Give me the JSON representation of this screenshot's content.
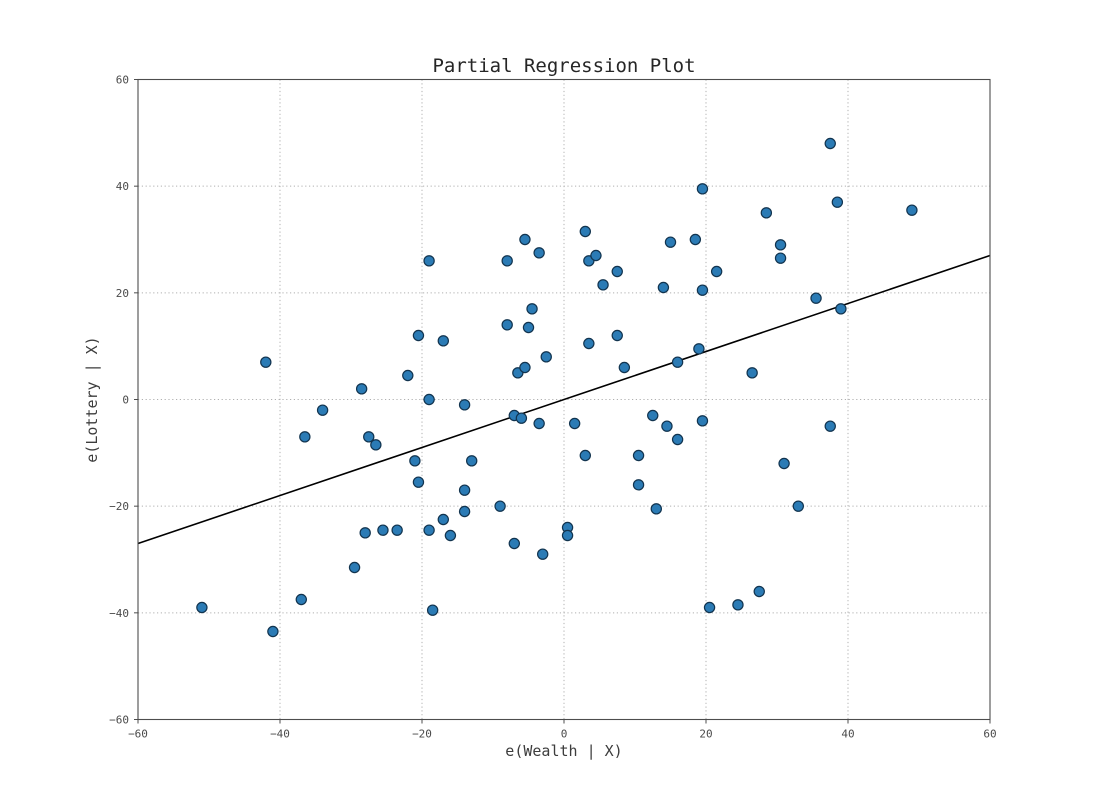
{
  "title": "Partial Regression Plot",
  "chart_data": {
    "type": "scatter",
    "title": "Partial Regression Plot",
    "xlabel": "e(Wealth | X)",
    "ylabel": "e(Lottery | X)",
    "xlim": [
      -60,
      60
    ],
    "ylim": [
      -60,
      60
    ],
    "xticks": [
      -60,
      -40,
      -20,
      0,
      20,
      40,
      60
    ],
    "yticks": [
      -60,
      -40,
      -20,
      0,
      20,
      40,
      60
    ],
    "grid": "dotted",
    "legend": "none",
    "marker_fill": "#2b7bb5",
    "marker_edge": "#12344f",
    "regression_line": {
      "x": [
        -60,
        60
      ],
      "y": [
        -27,
        27
      ],
      "color": "#000000"
    },
    "points": [
      [
        -51,
        -39
      ],
      [
        -42,
        7
      ],
      [
        -41,
        -43.5
      ],
      [
        -37,
        -37.5
      ],
      [
        -36.5,
        -7
      ],
      [
        -34,
        -2
      ],
      [
        -29.5,
        -31.5
      ],
      [
        -28.5,
        2
      ],
      [
        -28,
        -25
      ],
      [
        -27.5,
        -7
      ],
      [
        -26.5,
        -8.5
      ],
      [
        -25.5,
        -24.5
      ],
      [
        -23.5,
        -24.5
      ],
      [
        -22,
        4.5
      ],
      [
        -21,
        -11.5
      ],
      [
        -20.5,
        12
      ],
      [
        -20.5,
        -15.5
      ],
      [
        -19,
        26
      ],
      [
        -19,
        0
      ],
      [
        -19,
        -24.5
      ],
      [
        -18.5,
        -39.5
      ],
      [
        -17,
        11
      ],
      [
        -17,
        -22.5
      ],
      [
        -16,
        -25.5
      ],
      [
        -14,
        -1
      ],
      [
        -14,
        -17
      ],
      [
        -14,
        -21
      ],
      [
        -13,
        -11.5
      ],
      [
        -9,
        -20
      ],
      [
        -8,
        26
      ],
      [
        -8,
        14
      ],
      [
        -7,
        -3
      ],
      [
        -7,
        -27
      ],
      [
        -6.5,
        5
      ],
      [
        -6,
        -3.5
      ],
      [
        -5.5,
        30
      ],
      [
        -5.5,
        6
      ],
      [
        -5,
        13.5
      ],
      [
        -4.5,
        17
      ],
      [
        -3.5,
        27.5
      ],
      [
        -3.5,
        -4.5
      ],
      [
        -3,
        -29
      ],
      [
        -2.5,
        8
      ],
      [
        0.5,
        -24
      ],
      [
        0.5,
        -25.5
      ],
      [
        1.5,
        -4.5
      ],
      [
        3,
        31.5
      ],
      [
        3,
        -10.5
      ],
      [
        3.5,
        26
      ],
      [
        3.5,
        10.5
      ],
      [
        4.5,
        27
      ],
      [
        5.5,
        21.5
      ],
      [
        7.5,
        24
      ],
      [
        7.5,
        12
      ],
      [
        8.5,
        6
      ],
      [
        10.5,
        -10.5
      ],
      [
        10.5,
        -16
      ],
      [
        12.5,
        -3
      ],
      [
        13,
        -20.5
      ],
      [
        14,
        21
      ],
      [
        14.5,
        -5
      ],
      [
        15,
        29.5
      ],
      [
        16,
        7
      ],
      [
        16,
        -7.5
      ],
      [
        18.5,
        30
      ],
      [
        19,
        9.5
      ],
      [
        19.5,
        39.5
      ],
      [
        19.5,
        20.5
      ],
      [
        19.5,
        -4
      ],
      [
        20.5,
        -39
      ],
      [
        21.5,
        24
      ],
      [
        24.5,
        -38.5
      ],
      [
        26.5,
        5
      ],
      [
        27.5,
        -36
      ],
      [
        28.5,
        35
      ],
      [
        30.5,
        29
      ],
      [
        30.5,
        26.5
      ],
      [
        31,
        -12
      ],
      [
        33,
        -20
      ],
      [
        35.5,
        19
      ],
      [
        37.5,
        48
      ],
      [
        37.5,
        -5
      ],
      [
        38.5,
        37
      ],
      [
        39,
        17
      ],
      [
        49,
        35.5
      ]
    ]
  }
}
